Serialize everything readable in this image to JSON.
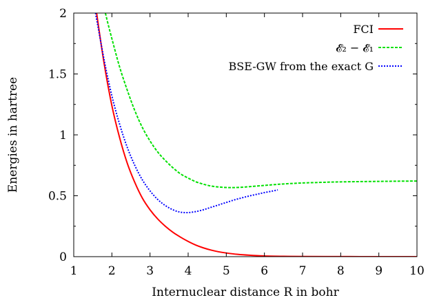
{
  "chart_data": {
    "type": "line",
    "xlabel": "Internuclear distance R in bohr",
    "ylabel": "Energies in hartree",
    "xlim": [
      1,
      10
    ],
    "ylim": [
      0,
      2
    ],
    "xticks": [
      "1",
      "2",
      "3",
      "4",
      "5",
      "6",
      "7",
      "8",
      "9",
      "10"
    ],
    "yticks": [
      "0",
      "0.5",
      "1",
      "1.5",
      "2"
    ],
    "grid": false,
    "legend_position": "top-right",
    "series": [
      {
        "name": "FCI",
        "color": "#ff0000",
        "dash": "solid",
        "x": [
          1.5,
          1.6,
          1.8,
          2.0,
          2.2,
          2.4,
          2.6,
          2.8,
          3.0,
          3.2,
          3.4,
          3.6,
          3.8,
          4.0,
          4.2,
          4.4,
          4.6,
          4.8,
          5.0,
          5.3,
          5.6,
          6.0,
          6.5,
          7.0,
          8.0,
          9.0,
          10.0
        ],
        "y": [
          2.25,
          2.0,
          1.58,
          1.24,
          0.98,
          0.77,
          0.61,
          0.48,
          0.385,
          0.31,
          0.25,
          0.2,
          0.16,
          0.125,
          0.095,
          0.072,
          0.054,
          0.04,
          0.03,
          0.019,
          0.012,
          0.006,
          0.003,
          0.0015,
          0.0005,
          0.0002,
          0.0001
        ]
      },
      {
        "name": "𝓔₂ − 𝓔₁",
        "color": "#00e000",
        "dash": "dashed",
        "x": [
          1.83,
          1.9,
          2.0,
          2.2,
          2.4,
          2.6,
          2.8,
          3.0,
          3.2,
          3.4,
          3.6,
          3.8,
          4.0,
          4.2,
          4.4,
          4.6,
          4.8,
          5.0,
          5.2,
          5.5,
          6.0,
          6.5,
          7.0,
          7.5,
          8.0,
          9.0,
          10.0
        ],
        "y": [
          2.0,
          1.91,
          1.79,
          1.56,
          1.37,
          1.2,
          1.06,
          0.95,
          0.86,
          0.79,
          0.73,
          0.68,
          0.645,
          0.615,
          0.595,
          0.58,
          0.572,
          0.568,
          0.567,
          0.572,
          0.585,
          0.597,
          0.605,
          0.61,
          0.614,
          0.618,
          0.621
        ]
      },
      {
        "name": "BSE-GW from the exact G",
        "color": "#0000ff",
        "dash": "dotted",
        "x": [
          1.57,
          1.6,
          1.8,
          2.0,
          2.2,
          2.4,
          2.6,
          2.8,
          3.0,
          3.2,
          3.4,
          3.6,
          3.8,
          4.0,
          4.2,
          4.4,
          4.6,
          4.8,
          5.0,
          5.2,
          5.4,
          5.6,
          5.8,
          6.0,
          6.2,
          6.35
        ],
        "y": [
          2.0,
          1.95,
          1.61,
          1.32,
          1.09,
          0.9,
          0.75,
          0.63,
          0.54,
          0.47,
          0.42,
          0.385,
          0.365,
          0.362,
          0.37,
          0.385,
          0.405,
          0.425,
          0.445,
          0.465,
          0.482,
          0.498,
          0.512,
          0.526,
          0.538,
          0.548
        ]
      }
    ]
  }
}
